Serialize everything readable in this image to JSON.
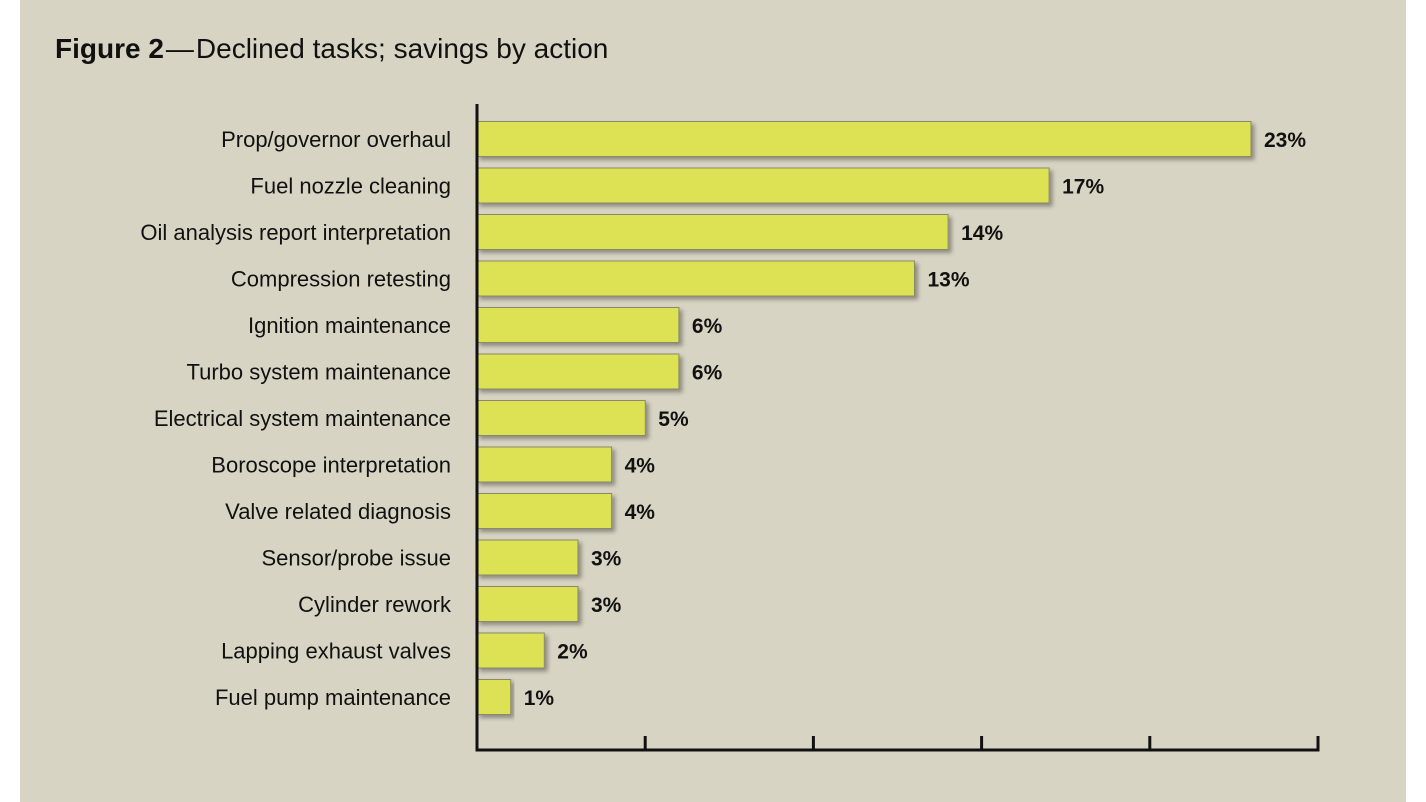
{
  "title": {
    "prefix": "Figure 2",
    "dash": "—",
    "text": "Declined tasks; savings by action"
  },
  "colors": {
    "background": "#d8d4c4",
    "bar_fill": "#dce252",
    "bar_stroke": "#8a8a6a",
    "axis": "#111111"
  },
  "chart_data": {
    "type": "bar",
    "orientation": "horizontal",
    "title": "Declined tasks; savings by action",
    "xlabel": "",
    "ylabel": "",
    "xlim": [
      0,
      25
    ],
    "grid": false,
    "legend": "none",
    "value_suffix": "%",
    "categories": [
      "Prop/governor overhaul",
      "Fuel nozzle cleaning",
      "Oil analysis report interpretation",
      "Compression retesting",
      "Ignition maintenance",
      "Turbo system maintenance",
      "Electrical system maintenance",
      "Boroscope interpretation",
      "Valve related diagnosis",
      "Sensor/probe issue",
      "Cylinder rework",
      "Lapping exhaust valves",
      "Fuel pump maintenance"
    ],
    "values": [
      23,
      17,
      14,
      13,
      6,
      6,
      5,
      4,
      4,
      3,
      3,
      2,
      1
    ],
    "value_labels": [
      "23%",
      "17%",
      "14%",
      "13%",
      "6%",
      "6%",
      "5%",
      "4%",
      "4%",
      "3%",
      "3%",
      "2%",
      "1%"
    ]
  }
}
